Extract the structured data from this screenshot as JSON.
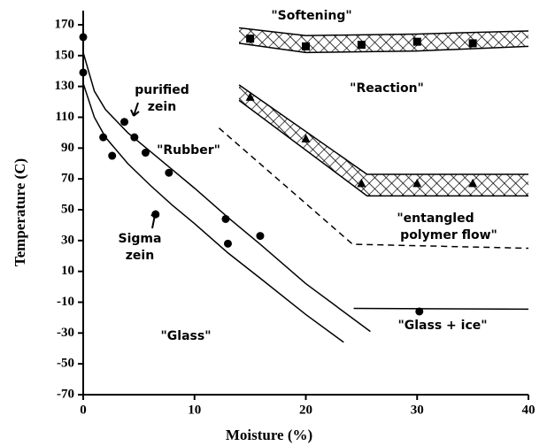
{
  "chart_data": {
    "type": "scatter",
    "x_label": "Moisture (%)",
    "y_label": "Temperature (C)",
    "xlim": [
      0,
      40
    ],
    "xticks": [
      0,
      10,
      20,
      30,
      40
    ],
    "ylim": [
      -70,
      170
    ],
    "yticks": [
      -70,
      -50,
      -30,
      -10,
      10,
      30,
      50,
      70,
      90,
      110,
      130,
      150,
      170
    ],
    "color": "#000000",
    "series": [
      {
        "marker": "circle",
        "x": [
          0,
          0,
          1.8,
          2.6,
          3.7,
          4.6,
          5.6,
          6.5,
          7.7,
          12.8,
          13,
          15.9,
          30.2
        ],
        "values": [
          162,
          139,
          97,
          85,
          107,
          97,
          87,
          47,
          74,
          44,
          28,
          33,
          -16
        ]
      },
      {
        "marker": "square",
        "x": [
          15,
          20,
          25,
          30,
          35
        ],
        "values": [
          161,
          156,
          157,
          159,
          158
        ]
      },
      {
        "marker": "triangle",
        "x": [
          15,
          20,
          25,
          30,
          35
        ],
        "values": [
          123,
          96,
          67,
          67,
          67
        ]
      },
      {
        "marker": "none",
        "x": [
          0,
          1,
          2,
          4,
          6,
          8,
          10,
          13,
          16,
          20,
          25.8
        ],
        "values": [
          152,
          127,
          115,
          100,
          88,
          76,
          64,
          45,
          27,
          2,
          -29
        ]
      },
      {
        "marker": "none",
        "x": [
          0,
          1,
          2,
          4,
          6,
          8,
          10,
          13,
          16,
          20,
          23.4
        ],
        "values": [
          132,
          110,
          97,
          80,
          66,
          53,
          41,
          22,
          5,
          -18,
          -36
        ]
      },
      {
        "marker": "none",
        "dash": true,
        "x": [
          12.2,
          24.2,
          40
        ],
        "values": [
          103,
          27.6,
          25
        ]
      },
      {
        "marker": "none",
        "x": [
          24.3,
          40
        ],
        "values": [
          -14,
          -14.5
        ]
      }
    ],
    "bands": [
      {
        "x": [
          14,
          20,
          30,
          40
        ],
        "upper": [
          168,
          163,
          164,
          166
        ],
        "lower": [
          158,
          152,
          153,
          156
        ]
      },
      {
        "x": [
          14,
          25.5,
          40
        ],
        "upper": [
          131,
          73,
          73
        ],
        "lower": [
          121,
          59,
          59
        ]
      }
    ],
    "annotations": [
      [
        "\"Softening\""
      ],
      [
        "\"Reaction\""
      ],
      [
        "purified",
        "zein"
      ],
      [
        "\"Rubber\""
      ],
      [
        "Sigma",
        "zein"
      ],
      [
        "\"entangled",
        "polymer flow\""
      ],
      [
        "\"Glass + ice\""
      ],
      [
        "\"Glass\""
      ]
    ]
  }
}
